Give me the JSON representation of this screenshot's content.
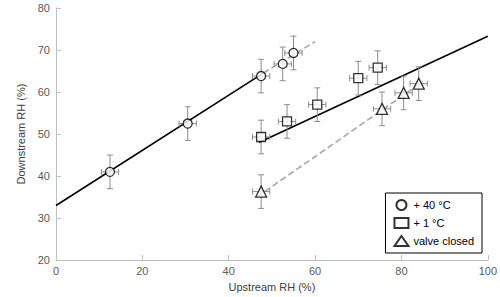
{
  "chart_data": {
    "type": "scatter",
    "x_label": "Upstream RH (%)",
    "y_label": "Downstream RH (%)",
    "xlim": [
      0,
      100
    ],
    "xticks": [
      0,
      20,
      40,
      60,
      80,
      100
    ],
    "ylim": [
      20,
      80
    ],
    "yticks": [
      20,
      30,
      40,
      50,
      60,
      70,
      80
    ],
    "grid": false,
    "legend": "lower right",
    "series": [
      {
        "name": "+ 40 °C",
        "type": "scatter",
        "marker": "circle",
        "color": "#000000",
        "x": [
          12.5,
          30.5,
          47.5,
          52.5,
          55
        ],
        "values": [
          41,
          52.5,
          63.8,
          66.7,
          69.3
        ],
        "x_err": [
          2,
          2,
          2,
          2,
          2
        ],
        "y_err": [
          4,
          4,
          4,
          4,
          4
        ]
      },
      {
        "name": "+ 1 °C",
        "type": "scatter",
        "marker": "square",
        "color": "#000000",
        "x": [
          47.5,
          53.5,
          60.5,
          70,
          74.5
        ],
        "values": [
          49.3,
          53,
          57,
          63.3,
          65.8
        ],
        "x_err": [
          2,
          2,
          2,
          2,
          2
        ],
        "y_err": [
          4,
          4,
          4,
          4,
          4
        ]
      },
      {
        "name": "valve closed",
        "type": "scatter",
        "marker": "triangle",
        "color": "#000000",
        "x": [
          47.5,
          75.5,
          80.5,
          84
        ],
        "values": [
          36.3,
          56,
          59.8,
          62
        ],
        "x_err": [
          2,
          2,
          2,
          2
        ],
        "y_err": [
          4,
          4,
          4,
          4
        ]
      },
      {
        "type": "line",
        "line_style": "solid",
        "color": "#000000",
        "x": [
          0,
          48
        ],
        "values": [
          33,
          64.5
        ]
      },
      {
        "type": "line",
        "line_style": "dashed",
        "color": "#a6a6a6",
        "x": [
          48,
          60
        ],
        "values": [
          64.5,
          72
        ]
      },
      {
        "type": "line",
        "line_style": "solid",
        "color": "#000000",
        "x": [
          47,
          100
        ],
        "values": [
          48,
          73.3
        ]
      },
      {
        "type": "line",
        "line_style": "dashed",
        "color": "#a6a6a6",
        "x": [
          46.5,
          85
        ],
        "values": [
          35,
          62.5
        ]
      }
    ]
  }
}
